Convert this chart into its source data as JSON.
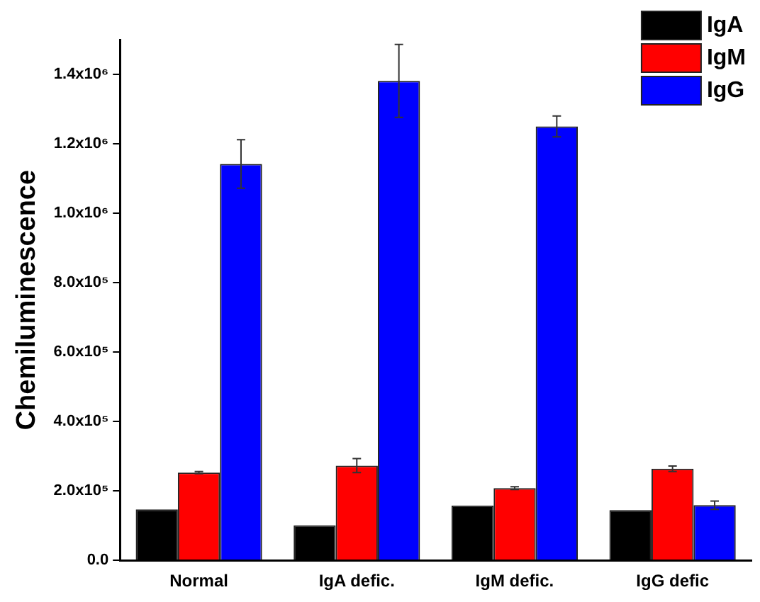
{
  "chart_data": {
    "type": "bar",
    "ylabel": "Chemiluminescence",
    "categories": [
      "Normal",
      "IgA defic.",
      "IgM defic.",
      "IgG defic"
    ],
    "series": [
      {
        "name": "IgA",
        "color": "#000000",
        "values": [
          147000,
          101000,
          158000,
          145000
        ]
      },
      {
        "name": "IgM",
        "color": "#ff0000",
        "values": [
          253000,
          273000,
          208000,
          264000
        ],
        "errors": [
          3000,
          20000,
          4000,
          8000
        ]
      },
      {
        "name": "IgG",
        "color": "#0000ff",
        "values": [
          1142000,
          1381000,
          1250000,
          159000
        ],
        "errors": [
          70000,
          105000,
          30000,
          12000
        ]
      }
    ],
    "ylim": [
      0,
      1500000
    ],
    "yticks": [
      {
        "value": 0,
        "label": "0.0"
      },
      {
        "value": 200000,
        "label": "2.0x10⁵"
      },
      {
        "value": 400000,
        "label": "4.0x10⁵"
      },
      {
        "value": 600000,
        "label": "6.0x10⁵"
      },
      {
        "value": 800000,
        "label": "8.0x10⁵"
      },
      {
        "value": 1000000,
        "label": "1.0x10⁶"
      },
      {
        "value": 1200000,
        "label": "1.2x10⁶"
      },
      {
        "value": 1400000,
        "label": "1.4x10⁶"
      }
    ],
    "grid": false,
    "legend": "top right"
  }
}
